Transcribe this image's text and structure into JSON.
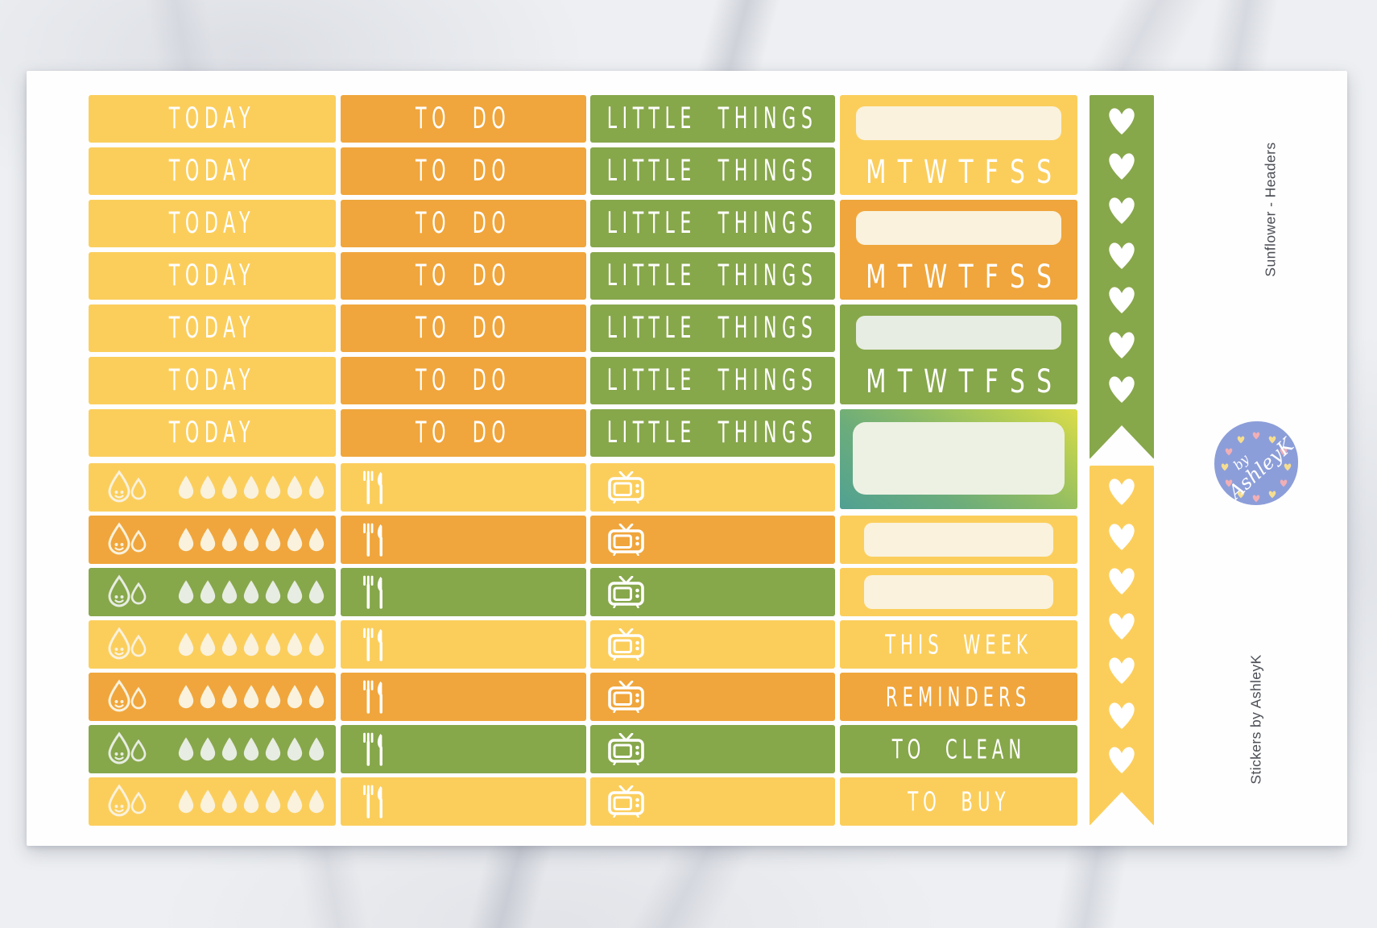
{
  "colors": {
    "yellow": "#FBCE5C",
    "orange": "#F0A63C",
    "green": "#87A74B",
    "cream": "#FAF2DD",
    "pale_green": "#E7EDE2",
    "white": "#FFFFFF",
    "badge_blue": "#8C9ED9",
    "badge_heart_pink": "#F2AFB5",
    "badge_heart_yellow": "#F6DE90",
    "side_text_gray": "#4B4E55"
  },
  "stickers": {
    "header_columns": [
      {
        "name": "today",
        "label": "TODAY",
        "color": "yellow",
        "count": 7
      },
      {
        "name": "todo",
        "label": "TO DO",
        "color": "orange",
        "count": 7
      },
      {
        "name": "little-things",
        "label": "LITTLE THINGS",
        "color": "green",
        "count": 7
      }
    ],
    "icon_row_colors": [
      "yellow",
      "orange",
      "green",
      "yellow",
      "orange",
      "green",
      "yellow"
    ],
    "icon_rows": [
      {
        "icon": "water-drops-icon",
        "drops_per_row": 7
      },
      {
        "icon": "cutlery-icon"
      },
      {
        "icon": "tv-icon"
      }
    ],
    "habit_trackers": {
      "colors": [
        "yellow",
        "orange",
        "green"
      ],
      "days": [
        "M",
        "T",
        "W",
        "T",
        "F",
        "S",
        "S"
      ]
    },
    "watercolor_tracker": {
      "style": "green-watercolor",
      "label": ""
    },
    "blank_label_rows": {
      "count": 2,
      "color": "yellow"
    },
    "category_rows": [
      {
        "label": "THIS WEEK",
        "color": "yellow"
      },
      {
        "label": "REMINDERS",
        "color": "orange"
      },
      {
        "label": "TO CLEAN",
        "color": "green"
      },
      {
        "label": "TO BUY",
        "color": "yellow"
      }
    ],
    "heart_strips": [
      {
        "color": "green",
        "hearts": 7
      },
      {
        "color": "yellow",
        "hearts": 7
      }
    ]
  },
  "branding": {
    "product_title": "Sunflower - Headers",
    "shop_name": "Stickers by AshleyK",
    "badge_line1": "by",
    "badge_line2": "AshleyK"
  }
}
